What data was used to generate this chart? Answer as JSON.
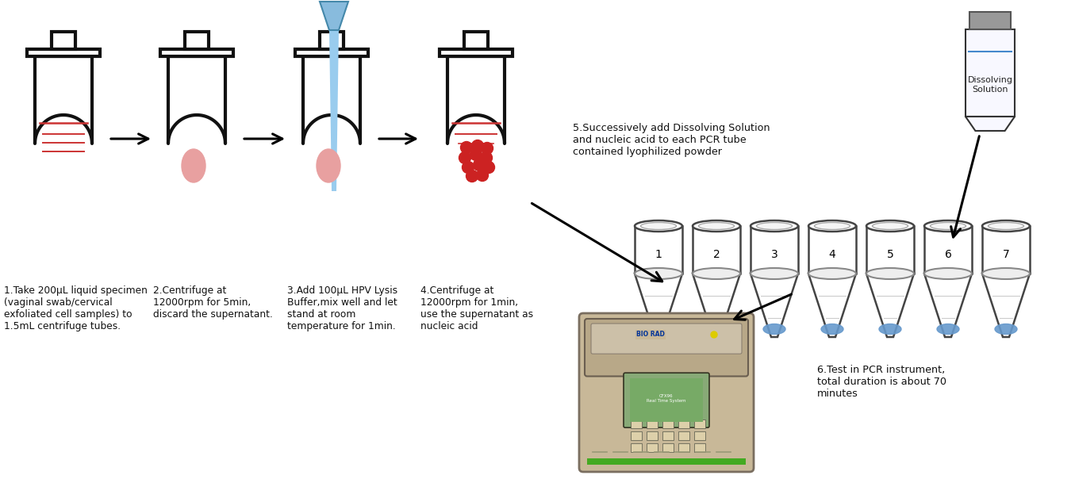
{
  "bg_color": "#ffffff",
  "text_color": "#111111",
  "step1_text": "1.Take 200μL liquid specimen\n(vaginal swab/cervical\nexfoliated cell samples) to\n1.5mL centrifuge tubes.",
  "step2_text": "2.Centrifuge at\n12000rpm for 5min,\ndiscard the supernatant.",
  "step3_text": "3.Add 100μL HPV Lysis\nBuffer,mix well and let\nstand at room\ntemperature for 1min.",
  "step4_text": "4.Centrifuge at\n12000rpm for 1min,\nuse the supernatant as\nnucleic acid",
  "step5_text": "5.Successively add Dissolving Solution\nand nucleic acid to each PCR tube\ncontained lyophilized powder",
  "step6_text": "6.Test in PCR instrument,\ntotal duration is about 70\nminutes",
  "dissolving_label": "Dissolving\nSolution",
  "pcr_tube_numbers": [
    "1",
    "2",
    "3",
    "4",
    "5",
    "6",
    "7"
  ],
  "tube_ec": "#111111",
  "tube_fc": "#ffffff",
  "pink_color": "#e8a0a0",
  "red_ball_color": "#cc2222",
  "blue_tip_fc": "#88bbdd",
  "blue_tip_ec": "#4488aa",
  "blue_pellet_color": "#6699cc",
  "red_line_color": "#cc3333",
  "tube_lw": 3.0,
  "arrow_lw": 2.2
}
